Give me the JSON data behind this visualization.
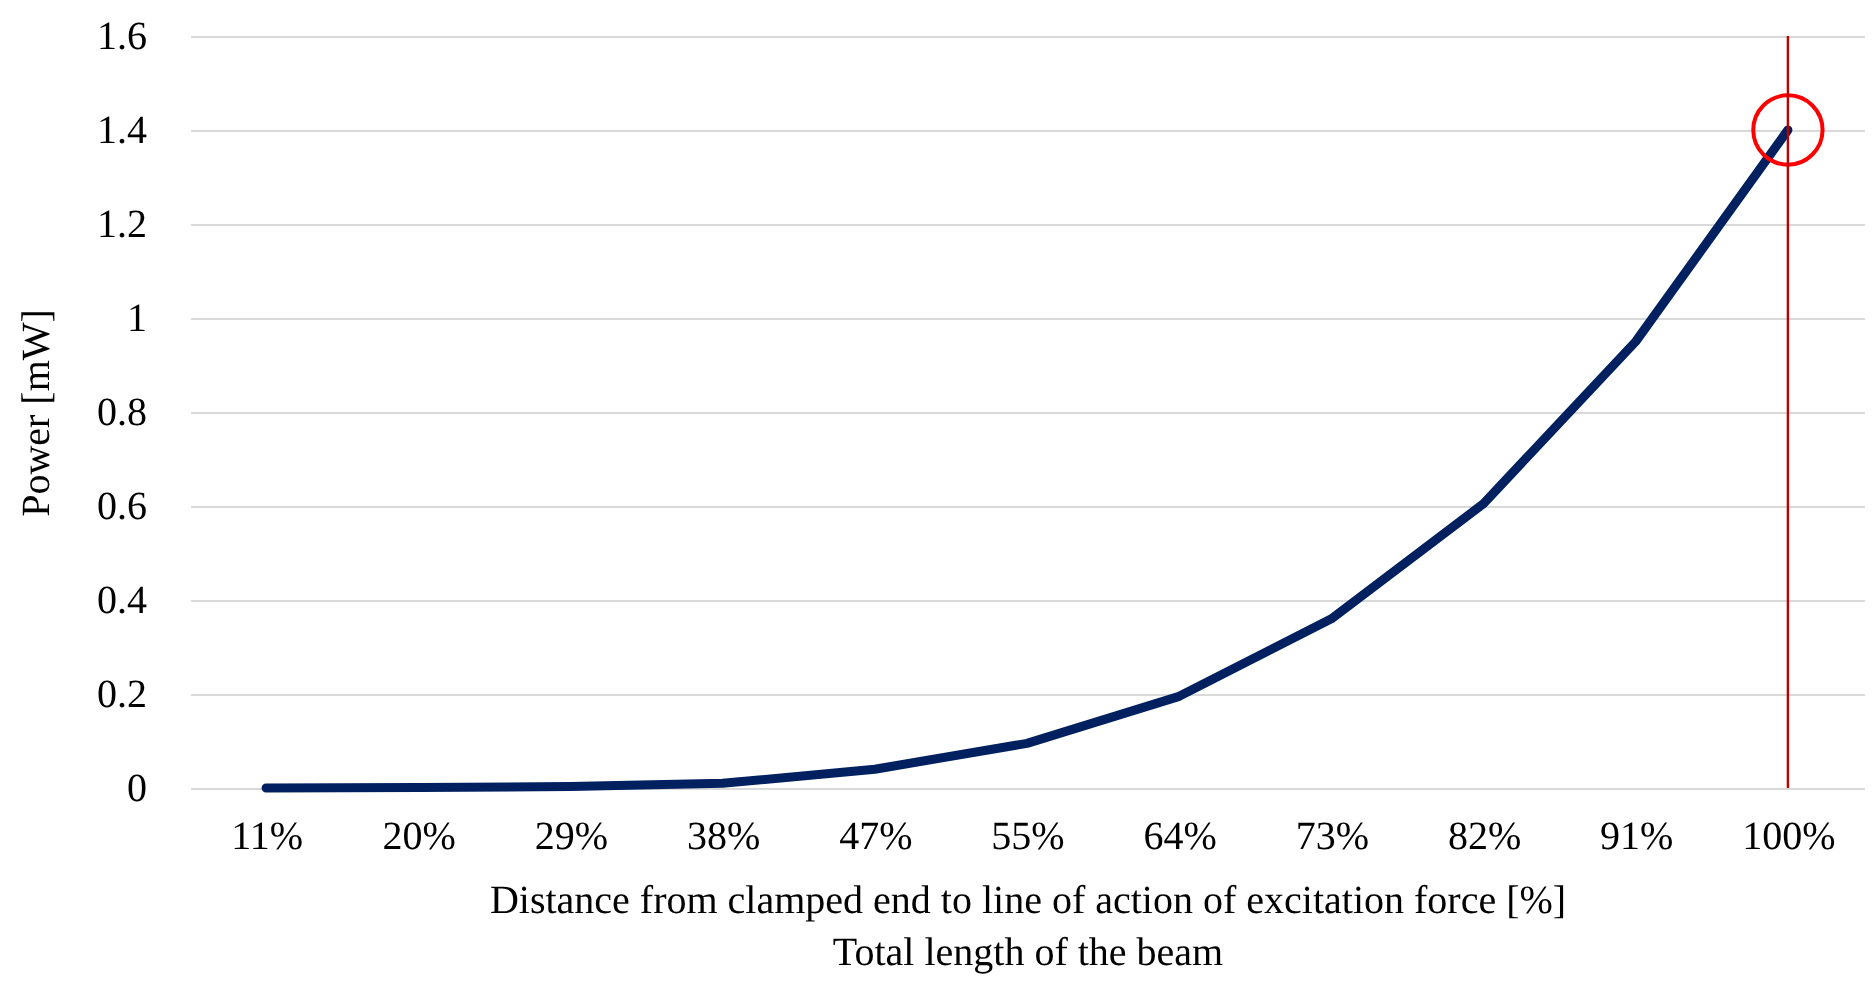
{
  "chart_data": {
    "type": "line",
    "xlabel": "Distance from clamped end to line of action of excitation force     [%]\nTotal length of the beam",
    "ylabel": "Power [mW]",
    "categories": [
      "11%",
      "20%",
      "29%",
      "38%",
      "47%",
      "55%",
      "64%",
      "73%",
      "82%",
      "91%",
      "100%"
    ],
    "series": [
      {
        "color": "#002060",
        "values": [
          0,
          0.001,
          0.003,
          0.01,
          0.04,
          0.095,
          0.195,
          0.36,
          0.605,
          0.95,
          1.4
        ]
      },
      {
        "type": "scatter",
        "color": "#ff0000",
        "marker": "circle",
        "x": [
          "100%"
        ],
        "values": [
          1.4
        ]
      }
    ],
    "ref_lines": [
      {
        "axis": "x",
        "value": "100%",
        "color": "#c00000"
      }
    ],
    "ylim": [
      0,
      1.6
    ],
    "yticks": [
      0,
      0.2,
      0.4,
      0.6,
      0.8,
      1,
      1.2,
      1.4,
      1.6
    ],
    "grid": "y"
  }
}
